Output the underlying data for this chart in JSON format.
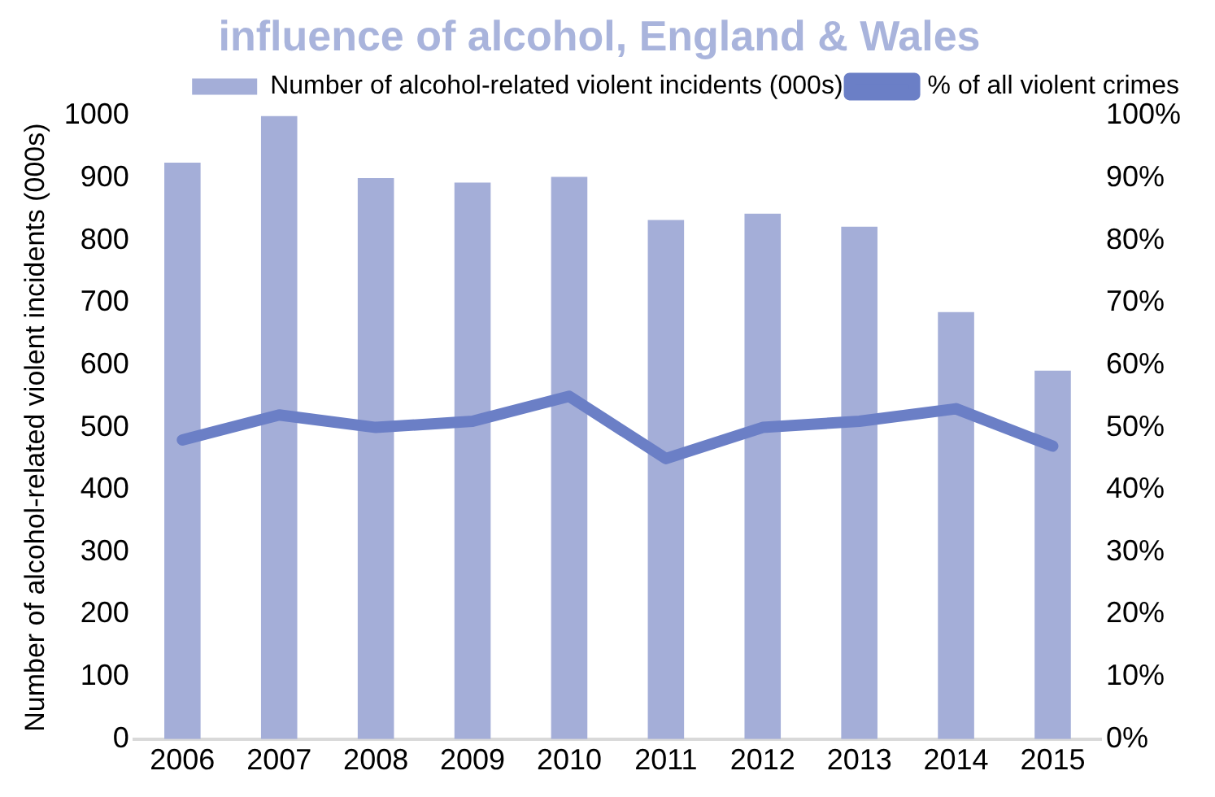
{
  "chart_data": {
    "type": "bar",
    "title": "influence of alcohol, England & Wales",
    "ylabel": "Number of alcohol-related violent incidents (000s)",
    "categories": [
      "2006",
      "2007",
      "2008",
      "2009",
      "2010",
      "2011",
      "2012",
      "2013",
      "2014",
      "2015"
    ],
    "series": [
      {
        "name": "Number of alcohol-related violent incidents (000s)",
        "color": "#a4aed8",
        "values": [
          925,
          1000,
          900,
          893,
          902,
          833,
          843,
          822,
          685,
          591
        ]
      },
      {
        "name": "% of all violent crimes",
        "type": "line",
        "axis": "y2",
        "color": "#6b7fc6",
        "values": [
          48,
          52,
          50,
          51,
          55,
          45,
          50,
          51,
          53,
          47
        ]
      }
    ],
    "ylim": [
      0,
      1000
    ],
    "yticks": [
      0,
      100,
      200,
      300,
      400,
      500,
      600,
      700,
      800,
      900,
      1000
    ],
    "y2lim": [
      0,
      100
    ],
    "y2ticks": [
      {
        "value": 0,
        "label": "0%"
      },
      {
        "value": 10,
        "label": "10%"
      },
      {
        "value": 20,
        "label": "20%"
      },
      {
        "value": 30,
        "label": "30%"
      },
      {
        "value": 40,
        "label": "40%"
      },
      {
        "value": 50,
        "label": "50%"
      },
      {
        "value": 60,
        "label": "60%"
      },
      {
        "value": 70,
        "label": "70%"
      },
      {
        "value": 80,
        "label": "80%"
      },
      {
        "value": 90,
        "label": "90%"
      },
      {
        "value": 100,
        "label": "100%"
      }
    ],
    "grid": false,
    "legend": "top right",
    "marker": "none"
  }
}
